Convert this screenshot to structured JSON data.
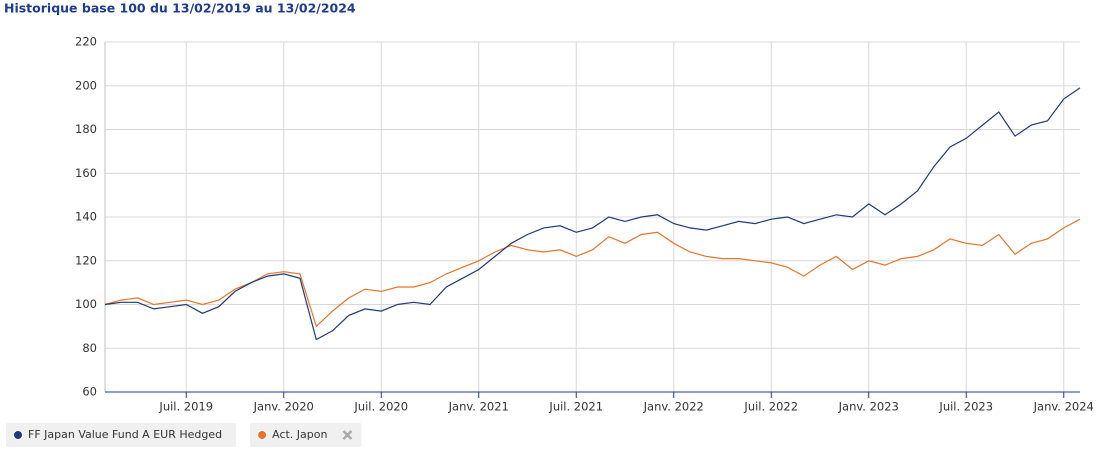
{
  "chart_data": {
    "type": "line",
    "title": "Historique base 100 du 13/02/2019 au 13/02/2024",
    "x": [
      "2019-02",
      "2019-03",
      "2019-04",
      "2019-05",
      "2019-06",
      "2019-07",
      "2019-08",
      "2019-09",
      "2019-10",
      "2019-11",
      "2019-12",
      "2020-01",
      "2020-02",
      "2020-03",
      "2020-04",
      "2020-05",
      "2020-06",
      "2020-07",
      "2020-08",
      "2020-09",
      "2020-10",
      "2020-11",
      "2020-12",
      "2021-01",
      "2021-02",
      "2021-03",
      "2021-04",
      "2021-05",
      "2021-06",
      "2021-07",
      "2021-08",
      "2021-09",
      "2021-10",
      "2021-11",
      "2021-12",
      "2022-01",
      "2022-02",
      "2022-03",
      "2022-04",
      "2022-05",
      "2022-06",
      "2022-07",
      "2022-08",
      "2022-09",
      "2022-10",
      "2022-11",
      "2022-12",
      "2023-01",
      "2023-02",
      "2023-03",
      "2023-04",
      "2023-05",
      "2023-06",
      "2023-07",
      "2023-08",
      "2023-09",
      "2023-10",
      "2023-11",
      "2023-12",
      "2024-01",
      "2024-02"
    ],
    "series": [
      {
        "name": "FF Japan Value Fund A EUR Hedged",
        "color": "#1f3a7a",
        "values": [
          100,
          101,
          101,
          98,
          99,
          100,
          96,
          99,
          106,
          110,
          113,
          114,
          112,
          84,
          88,
          95,
          98,
          97,
          100,
          101,
          100,
          108,
          112,
          116,
          122,
          128,
          132,
          135,
          136,
          133,
          135,
          140,
          138,
          140,
          141,
          137,
          135,
          134,
          136,
          138,
          137,
          139,
          140,
          137,
          139,
          141,
          140,
          146,
          141,
          146,
          152,
          163,
          172,
          176,
          182,
          188,
          177,
          182,
          184,
          194,
          199
        ]
      },
      {
        "name": "Act. Japon",
        "color": "#e8742a",
        "values": [
          100,
          102,
          103,
          100,
          101,
          102,
          100,
          102,
          107,
          110,
          114,
          115,
          114,
          90,
          97,
          103,
          107,
          106,
          108,
          108,
          110,
          114,
          117,
          120,
          124,
          127,
          125,
          124,
          125,
          122,
          125,
          131,
          128,
          132,
          133,
          128,
          124,
          122,
          121,
          121,
          120,
          119,
          117,
          113,
          118,
          122,
          116,
          120,
          118,
          121,
          122,
          125,
          130,
          128,
          127,
          132,
          123,
          128,
          130,
          135,
          139
        ]
      }
    ],
    "xlim": [
      "2019-02",
      "2024-02"
    ],
    "xticks": [
      {
        "value": "2019-07",
        "label": "Juil. 2019"
      },
      {
        "value": "2020-01",
        "label": "Janv. 2020"
      },
      {
        "value": "2020-07",
        "label": "Juil. 2020"
      },
      {
        "value": "2021-01",
        "label": "Janv. 2021"
      },
      {
        "value": "2021-07",
        "label": "Juil. 2021"
      },
      {
        "value": "2022-01",
        "label": "Janv. 2022"
      },
      {
        "value": "2022-07",
        "label": "Juil. 2022"
      },
      {
        "value": "2023-01",
        "label": "Janv. 2023"
      },
      {
        "value": "2023-07",
        "label": "Juil. 2023"
      },
      {
        "value": "2024-01",
        "label": "Janv. 2024"
      }
    ],
    "ylim": [
      60,
      220
    ],
    "yticks": [
      60,
      80,
      100,
      120,
      140,
      160,
      180,
      200,
      220
    ],
    "grid": true,
    "legend": "bottom-left"
  }
}
